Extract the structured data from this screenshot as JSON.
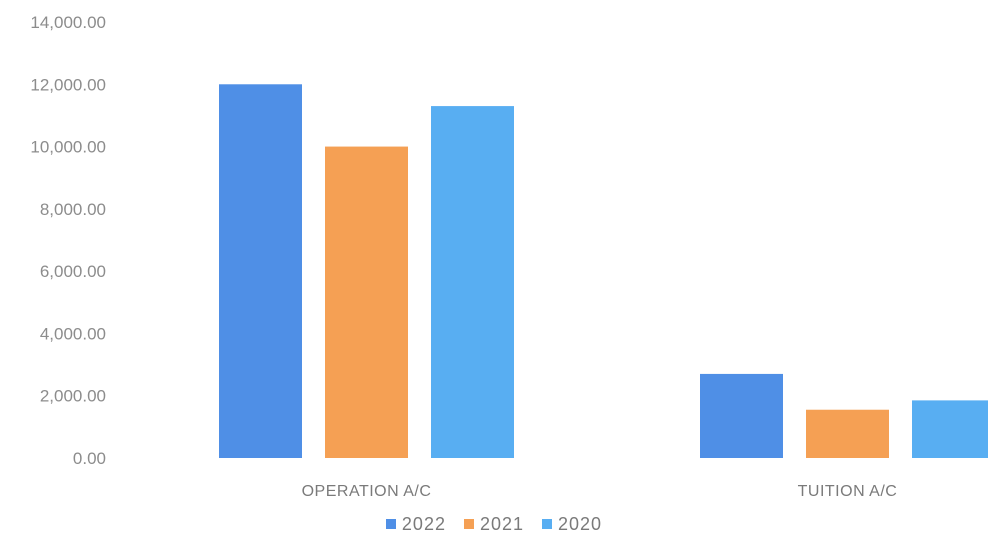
{
  "chart_data": {
    "type": "bar",
    "title": "",
    "xlabel": "",
    "ylabel": "",
    "categories": [
      "OPERATION A/C",
      "TUITION A/C"
    ],
    "series": [
      {
        "name": "2022",
        "values": [
          12000,
          2700
        ],
        "color": "#4f8fe6"
      },
      {
        "name": "2021",
        "values": [
          10000,
          1550
        ],
        "color": "#f5a054"
      },
      {
        "name": "2020",
        "values": [
          11300,
          1850
        ],
        "color": "#58aef2"
      }
    ],
    "ylim": [
      0,
      14000
    ],
    "yticks": [
      "0.00",
      "2,000.00",
      "4,000.00",
      "6,000.00",
      "8,000.00",
      "10,000.00",
      "12,000.00",
      "14,000.00"
    ],
    "grid": false,
    "legend_position": "bottom"
  }
}
